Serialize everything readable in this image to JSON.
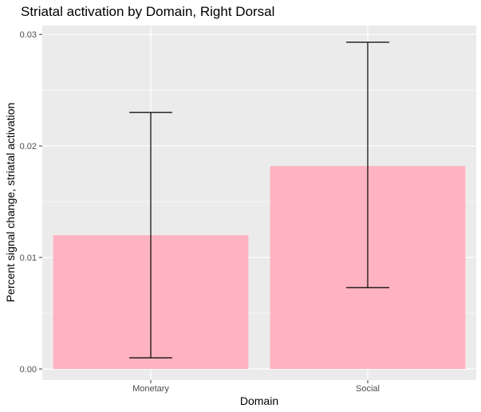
{
  "chart_data": {
    "type": "bar",
    "title": "Striatal activation by Domain, Right Dorsal",
    "xlabel": "Domain",
    "ylabel": "Percent signal change, striatal activation",
    "categories": [
      "Monetary",
      "Social"
    ],
    "values": [
      0.012,
      0.0182
    ],
    "error_low": [
      0.001,
      0.0073
    ],
    "error_high": [
      0.023,
      0.0293
    ],
    "ylim": [
      -0.001,
      0.0308
    ],
    "yticks": [
      0.0,
      0.01,
      0.02,
      0.03
    ],
    "ytick_labels": [
      "0.00",
      "0.01",
      "0.02",
      "0.03"
    ],
    "grid": true,
    "legend": "none",
    "colors": {
      "bar": "#ffb3c1",
      "panel": "#ebebeb",
      "grid": "#ffffff",
      "errorbar": "#000000",
      "tick": "#333333"
    }
  }
}
